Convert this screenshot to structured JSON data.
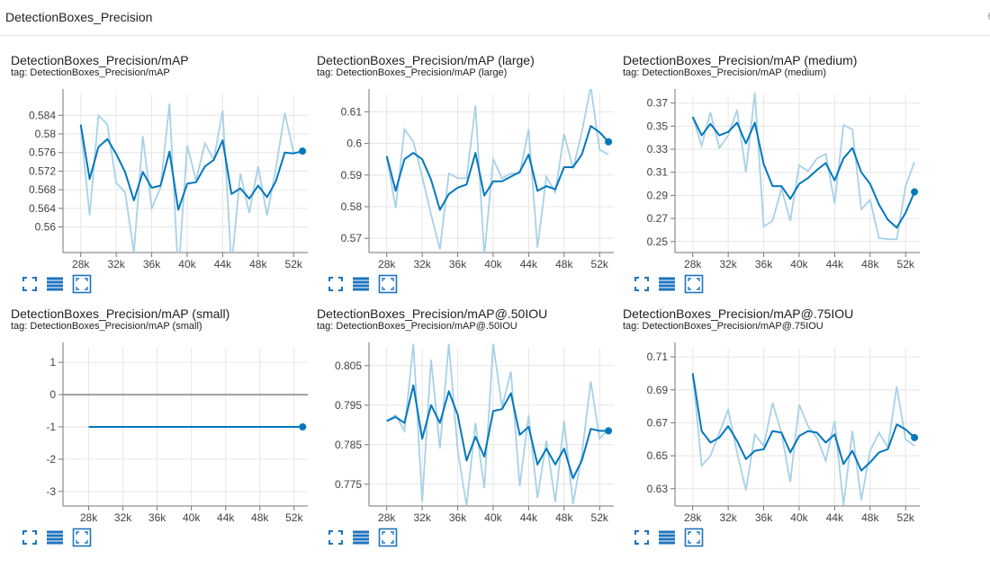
{
  "section": {
    "title": "DetectionBoxes_Precision",
    "count": "6"
  },
  "colors": {
    "smoothed": "#0277bd",
    "raw": "#a8d1e8",
    "grid": "#e6e6e6",
    "axis": "#757575",
    "zero": "#9e9e9e"
  },
  "icons": {
    "expand": "fullscreen-icon",
    "data": "list-icon",
    "fit": "fit-domain-icon"
  },
  "chart_data": [
    {
      "type": "line",
      "title": "DetectionBoxes_Precision/mAP",
      "tag": "tag: DetectionBoxes_Precision/mAP",
      "xlim": [
        26000,
        53600
      ],
      "ylim": [
        0.5545,
        0.5885
      ],
      "xticks": [
        28000,
        32000,
        36000,
        40000,
        44000,
        48000,
        52000
      ],
      "xtick_labels": [
        "28k",
        "32k",
        "36k",
        "40k",
        "44k",
        "48k",
        "52k"
      ],
      "yticks": [
        0.56,
        0.564,
        0.568,
        0.572,
        0.576,
        0.58,
        0.584
      ],
      "ytick_labels": [
        "0.56",
        "0.564",
        "0.568",
        "0.572",
        "0.576",
        "0.58",
        "0.584"
      ],
      "x": [
        28000,
        29000,
        30000,
        31000,
        32000,
        33000,
        34000,
        35000,
        36000,
        37000,
        38000,
        39000,
        40000,
        41000,
        42000,
        43000,
        44000,
        45000,
        46000,
        47000,
        48000,
        49000,
        50000,
        51000,
        52000,
        53000
      ],
      "series": [
        {
          "role": "raw",
          "values": [
            0.5815,
            0.5625,
            0.584,
            0.582,
            0.5695,
            0.5675,
            0.5545,
            0.5795,
            0.564,
            0.5685,
            0.5865,
            0.5495,
            0.5775,
            0.57,
            0.578,
            0.5745,
            0.585,
            0.5515,
            0.5715,
            0.563,
            0.573,
            0.5625,
            0.5725,
            0.5845,
            0.576,
            0.576
          ]
        },
        {
          "role": "smoothed",
          "values": [
            0.582,
            0.5703,
            0.5772,
            0.5789,
            0.5757,
            0.5718,
            0.5657,
            0.5718,
            0.5684,
            0.5689,
            0.5762,
            0.5637,
            0.5693,
            0.5696,
            0.573,
            0.5744,
            0.5786,
            0.5671,
            0.5683,
            0.5661,
            0.5689,
            0.5664,
            0.5698,
            0.576,
            0.5758,
            0.5763
          ]
        }
      ]
    },
    {
      "type": "line",
      "title": "DetectionBoxes_Precision/mAP (large)",
      "tag": "tag: DetectionBoxes_Precision/mAP (large)",
      "xlim": [
        26000,
        53600
      ],
      "ylim": [
        0.5655,
        0.6155
      ],
      "xticks": [
        28000,
        32000,
        36000,
        40000,
        44000,
        48000,
        52000
      ],
      "xtick_labels": [
        "28k",
        "32k",
        "36k",
        "40k",
        "44k",
        "48k",
        "52k"
      ],
      "yticks": [
        0.57,
        0.58,
        0.59,
        0.6,
        0.61
      ],
      "ytick_labels": [
        "0.57",
        "0.58",
        "0.59",
        "0.6",
        "0.61"
      ],
      "x": [
        28000,
        29000,
        30000,
        31000,
        32000,
        33000,
        34000,
        35000,
        36000,
        37000,
        38000,
        39000,
        40000,
        41000,
        42000,
        43000,
        44000,
        45000,
        46000,
        47000,
        48000,
        49000,
        50000,
        51000,
        52000,
        53000
      ],
      "series": [
        {
          "role": "raw",
          "values": [
            0.596,
            0.5795,
            0.6045,
            0.6005,
            0.5895,
            0.5775,
            0.5665,
            0.5905,
            0.589,
            0.589,
            0.612,
            0.5645,
            0.595,
            0.589,
            0.5905,
            0.5905,
            0.6045,
            0.567,
            0.5895,
            0.5845,
            0.603,
            0.592,
            0.6035,
            0.618,
            0.598,
            0.5965
          ]
        },
        {
          "role": "smoothed",
          "values": [
            0.596,
            0.585,
            0.595,
            0.597,
            0.595,
            0.5885,
            0.579,
            0.584,
            0.586,
            0.587,
            0.597,
            0.5835,
            0.588,
            0.588,
            0.5895,
            0.591,
            0.5965,
            0.585,
            0.5865,
            0.5855,
            0.5925,
            0.5925,
            0.5965,
            0.6055,
            0.6035,
            0.6005
          ]
        }
      ]
    },
    {
      "type": "line",
      "title": "DetectionBoxes_Precision/mAP (medium)",
      "tag": "tag: DetectionBoxes_Precision/mAP (medium)",
      "xlim": [
        26000,
        53600
      ],
      "ylim": [
        0.2405,
        0.3775
      ],
      "xticks": [
        28000,
        32000,
        36000,
        40000,
        44000,
        48000,
        52000
      ],
      "xtick_labels": [
        "28k",
        "32k",
        "36k",
        "40k",
        "44k",
        "48k",
        "52k"
      ],
      "yticks": [
        0.25,
        0.27,
        0.29,
        0.31,
        0.33,
        0.35,
        0.37
      ],
      "ytick_labels": [
        "0.25",
        "0.27",
        "0.29",
        "0.31",
        "0.33",
        "0.35",
        "0.37"
      ],
      "x": [
        28000,
        29000,
        30000,
        31000,
        32000,
        33000,
        34000,
        35000,
        36000,
        37000,
        38000,
        39000,
        40000,
        41000,
        42000,
        43000,
        44000,
        45000,
        46000,
        47000,
        48000,
        49000,
        50000,
        51000,
        52000,
        53000
      ],
      "series": [
        {
          "role": "raw",
          "values": [
            0.358,
            0.333,
            0.362,
            0.331,
            0.342,
            0.364,
            0.31,
            0.379,
            0.263,
            0.268,
            0.296,
            0.268,
            0.316,
            0.311,
            0.322,
            0.326,
            0.283,
            0.351,
            0.347,
            0.278,
            0.286,
            0.253,
            0.252,
            0.252,
            0.298,
            0.319
          ]
        },
        {
          "role": "smoothed",
          "values": [
            0.358,
            0.342,
            0.352,
            0.342,
            0.345,
            0.353,
            0.335,
            0.353,
            0.317,
            0.298,
            0.298,
            0.287,
            0.3,
            0.305,
            0.312,
            0.318,
            0.303,
            0.322,
            0.331,
            0.31,
            0.3,
            0.282,
            0.269,
            0.262,
            0.275,
            0.293
          ]
        }
      ]
    },
    {
      "type": "line",
      "title": "DetectionBoxes_Precision/mAP (small)",
      "tag": "tag: DetectionBoxes_Precision/mAP (small)",
      "xlim": [
        25000,
        53600
      ],
      "ylim": [
        -3.45,
        1.45
      ],
      "xticks": [
        28000,
        32000,
        36000,
        40000,
        44000,
        48000,
        52000
      ],
      "xtick_labels": [
        "28k",
        "32k",
        "36k",
        "40k",
        "44k",
        "48k",
        "52k"
      ],
      "yticks": [
        -3,
        -2,
        -1,
        0,
        1
      ],
      "ytick_labels": [
        "-3",
        "-2",
        "-1",
        "0",
        "1"
      ],
      "zero_line": true,
      "x": [
        28000,
        53000
      ],
      "series": [
        {
          "role": "raw",
          "values": [
            -1,
            -1
          ]
        },
        {
          "role": "smoothed",
          "values": [
            -1,
            -1
          ]
        }
      ]
    },
    {
      "type": "line",
      "title": "DetectionBoxes_Precision/mAP@.50IOU",
      "tag": "tag: DetectionBoxes_Precision/mAP@.50IOU",
      "xlim": [
        26000,
        53600
      ],
      "ylim": [
        0.7695,
        0.8095
      ],
      "xticks": [
        28000,
        32000,
        36000,
        40000,
        44000,
        48000,
        52000
      ],
      "xtick_labels": [
        "28k",
        "32k",
        "36k",
        "40k",
        "44k",
        "48k",
        "52k"
      ],
      "yticks": [
        0.775,
        0.785,
        0.795,
        0.805
      ],
      "ytick_labels": [
        "0.775",
        "0.785",
        "0.795",
        "0.805"
      ],
      "x": [
        28000,
        29000,
        30000,
        31000,
        32000,
        33000,
        34000,
        35000,
        36000,
        37000,
        38000,
        39000,
        40000,
        41000,
        42000,
        43000,
        44000,
        45000,
        46000,
        47000,
        48000,
        49000,
        50000,
        51000,
        52000,
        53000
      ],
      "series": [
        {
          "role": "raw",
          "values": [
            0.791,
            0.7925,
            0.7885,
            0.8105,
            0.7705,
            0.8065,
            0.784,
            0.8105,
            0.7835,
            0.7695,
            0.7905,
            0.774,
            0.8105,
            0.7945,
            0.8035,
            0.7745,
            0.7925,
            0.7715,
            0.786,
            0.7705,
            0.791,
            0.77,
            0.7825,
            0.801,
            0.7865,
            0.789
          ]
        },
        {
          "role": "smoothed",
          "values": [
            0.791,
            0.792,
            0.7905,
            0.8,
            0.7865,
            0.795,
            0.7905,
            0.7985,
            0.7925,
            0.781,
            0.787,
            0.782,
            0.7935,
            0.794,
            0.798,
            0.7875,
            0.7895,
            0.78,
            0.784,
            0.78,
            0.784,
            0.7765,
            0.781,
            0.789,
            0.7885,
            0.7885
          ]
        }
      ]
    },
    {
      "type": "line",
      "title": "DetectionBoxes_Precision/mAP@.75IOU",
      "tag": "tag: DetectionBoxes_Precision/mAP@.75IOU",
      "xlim": [
        26000,
        53600
      ],
      "ylim": [
        0.6195,
        0.7155
      ],
      "xticks": [
        28000,
        32000,
        36000,
        40000,
        44000,
        48000,
        52000
      ],
      "xtick_labels": [
        "28k",
        "32k",
        "36k",
        "40k",
        "44k",
        "48k",
        "52k"
      ],
      "yticks": [
        0.63,
        0.65,
        0.67,
        0.69,
        0.71
      ],
      "ytick_labels": [
        "0.63",
        "0.65",
        "0.67",
        "0.69",
        "0.71"
      ],
      "x": [
        28000,
        29000,
        30000,
        31000,
        32000,
        33000,
        34000,
        35000,
        36000,
        37000,
        38000,
        39000,
        40000,
        41000,
        42000,
        43000,
        44000,
        45000,
        46000,
        47000,
        48000,
        49000,
        50000,
        51000,
        52000,
        53000
      ],
      "series": [
        {
          "role": "raw",
          "values": [
            0.7,
            0.644,
            0.65,
            0.664,
            0.678,
            0.652,
            0.629,
            0.663,
            0.656,
            0.682,
            0.664,
            0.634,
            0.681,
            0.668,
            0.661,
            0.647,
            0.671,
            0.62,
            0.665,
            0.623,
            0.653,
            0.664,
            0.655,
            0.692,
            0.66,
            0.656
          ]
        },
        {
          "role": "smoothed",
          "values": [
            0.7,
            0.665,
            0.658,
            0.661,
            0.668,
            0.659,
            0.648,
            0.653,
            0.654,
            0.665,
            0.664,
            0.652,
            0.662,
            0.665,
            0.664,
            0.658,
            0.663,
            0.645,
            0.653,
            0.641,
            0.646,
            0.652,
            0.654,
            0.669,
            0.666,
            0.661
          ]
        }
      ]
    }
  ]
}
